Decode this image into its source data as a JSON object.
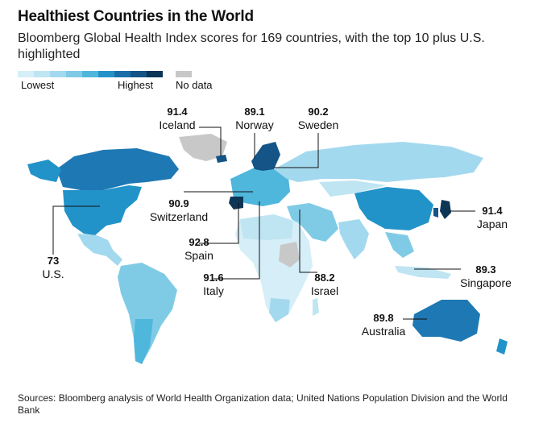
{
  "header": {
    "title": "Healthiest Countries in the World",
    "subtitle": "Bloomberg Global Health Index scores for 169 countries, with the top 10 plus U.S. highlighted"
  },
  "legend": {
    "low_label": "Lowest",
    "high_label": "Highest",
    "nodata_label": "No data",
    "scale_colors": [
      "#d6eef7",
      "#bfe5f3",
      "#a3d9ee",
      "#7fcbe6",
      "#4fb6dc",
      "#2293c9",
      "#1a6fa8",
      "#145486",
      "#0d3556"
    ],
    "nodata_color": "#c8c8c8"
  },
  "callouts": [
    {
      "id": "iceland",
      "value": "91.4",
      "country": "Iceland"
    },
    {
      "id": "norway",
      "value": "89.1",
      "country": "Norway"
    },
    {
      "id": "sweden",
      "value": "90.2",
      "country": "Sweden"
    },
    {
      "id": "switzerland",
      "value": "90.9",
      "country": "Switzerland"
    },
    {
      "id": "japan",
      "value": "91.4",
      "country": "Japan"
    },
    {
      "id": "us",
      "value": "73",
      "country": "U.S."
    },
    {
      "id": "spain",
      "value": "92.8",
      "country": "Spain"
    },
    {
      "id": "italy",
      "value": "91.6",
      "country": "Italy"
    },
    {
      "id": "israel",
      "value": "88.2",
      "country": "Israel"
    },
    {
      "id": "singapore",
      "value": "89.3",
      "country": "Singapore"
    },
    {
      "id": "australia",
      "value": "89.8",
      "country": "Australia"
    }
  ],
  "footer": {
    "source": "Sources: Bloomberg analysis of World Health Organization data; United Nations Population Division and the World Bank"
  }
}
